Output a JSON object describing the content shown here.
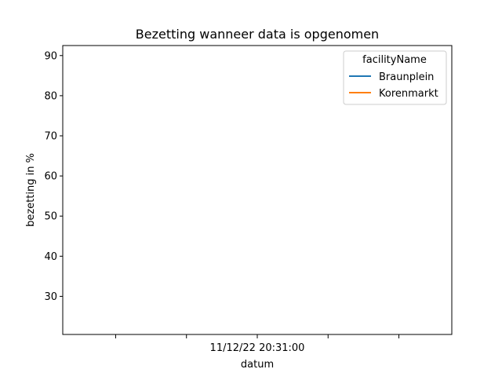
{
  "chart_data": {
    "type": "line",
    "title": "Bezetting wanneer data is opgenomen",
    "xlabel": "datum",
    "ylabel": "bezetting in %",
    "x_tick_labels": [
      "",
      "",
      "11/12/22 20:31:00",
      "",
      ""
    ],
    "y_ticks": [
      30,
      40,
      50,
      60,
      70,
      80,
      90
    ],
    "ylim": [
      20.5,
      92.5
    ],
    "grid": false,
    "legend": {
      "title": "facilityName",
      "placement": "top-right"
    },
    "series": [
      {
        "name": "Braunplein",
        "color": "#1f77b4",
        "x": [],
        "values": []
      },
      {
        "name": "Korenmarkt",
        "color": "#ff7f0e",
        "x": [],
        "values": []
      }
    ]
  }
}
